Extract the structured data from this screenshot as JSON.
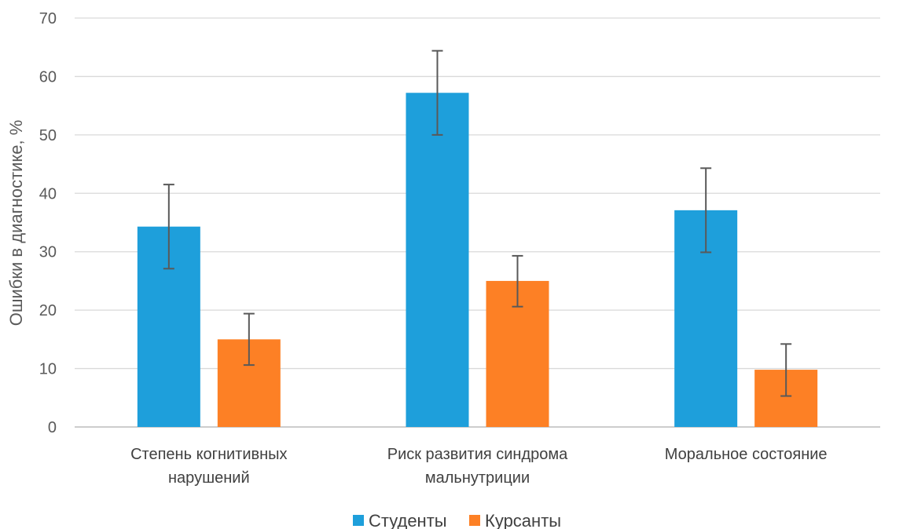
{
  "chart_data": {
    "type": "bar",
    "title": "",
    "xlabel": "",
    "ylabel": "Ошибки в диагностике, %",
    "ylim": [
      0,
      70
    ],
    "yticks": [
      0,
      10,
      20,
      30,
      40,
      50,
      60,
      70
    ],
    "grid": true,
    "legend_position": "bottom",
    "categories": [
      [
        "Степень когнитивных",
        "нарушений"
      ],
      [
        "Риск развития синдрома",
        "мальнутриции"
      ],
      [
        "Моральное состояние"
      ]
    ],
    "series": [
      {
        "name": "Студенты",
        "color": "#1e9fdb",
        "values": [
          34.3,
          57.2,
          37.1
        ],
        "error_low": [
          27.1,
          50.0,
          29.9
        ],
        "error_high": [
          41.5,
          64.4,
          44.3
        ]
      },
      {
        "name": "Курсанты",
        "color": "#fd8025",
        "values": [
          15.0,
          25.0,
          9.8
        ],
        "error_low": [
          10.6,
          20.6,
          5.3
        ],
        "error_high": [
          19.4,
          29.3,
          14.2
        ]
      }
    ],
    "error_bar_color": "#595959",
    "grid_color": "#d9d9d9"
  }
}
